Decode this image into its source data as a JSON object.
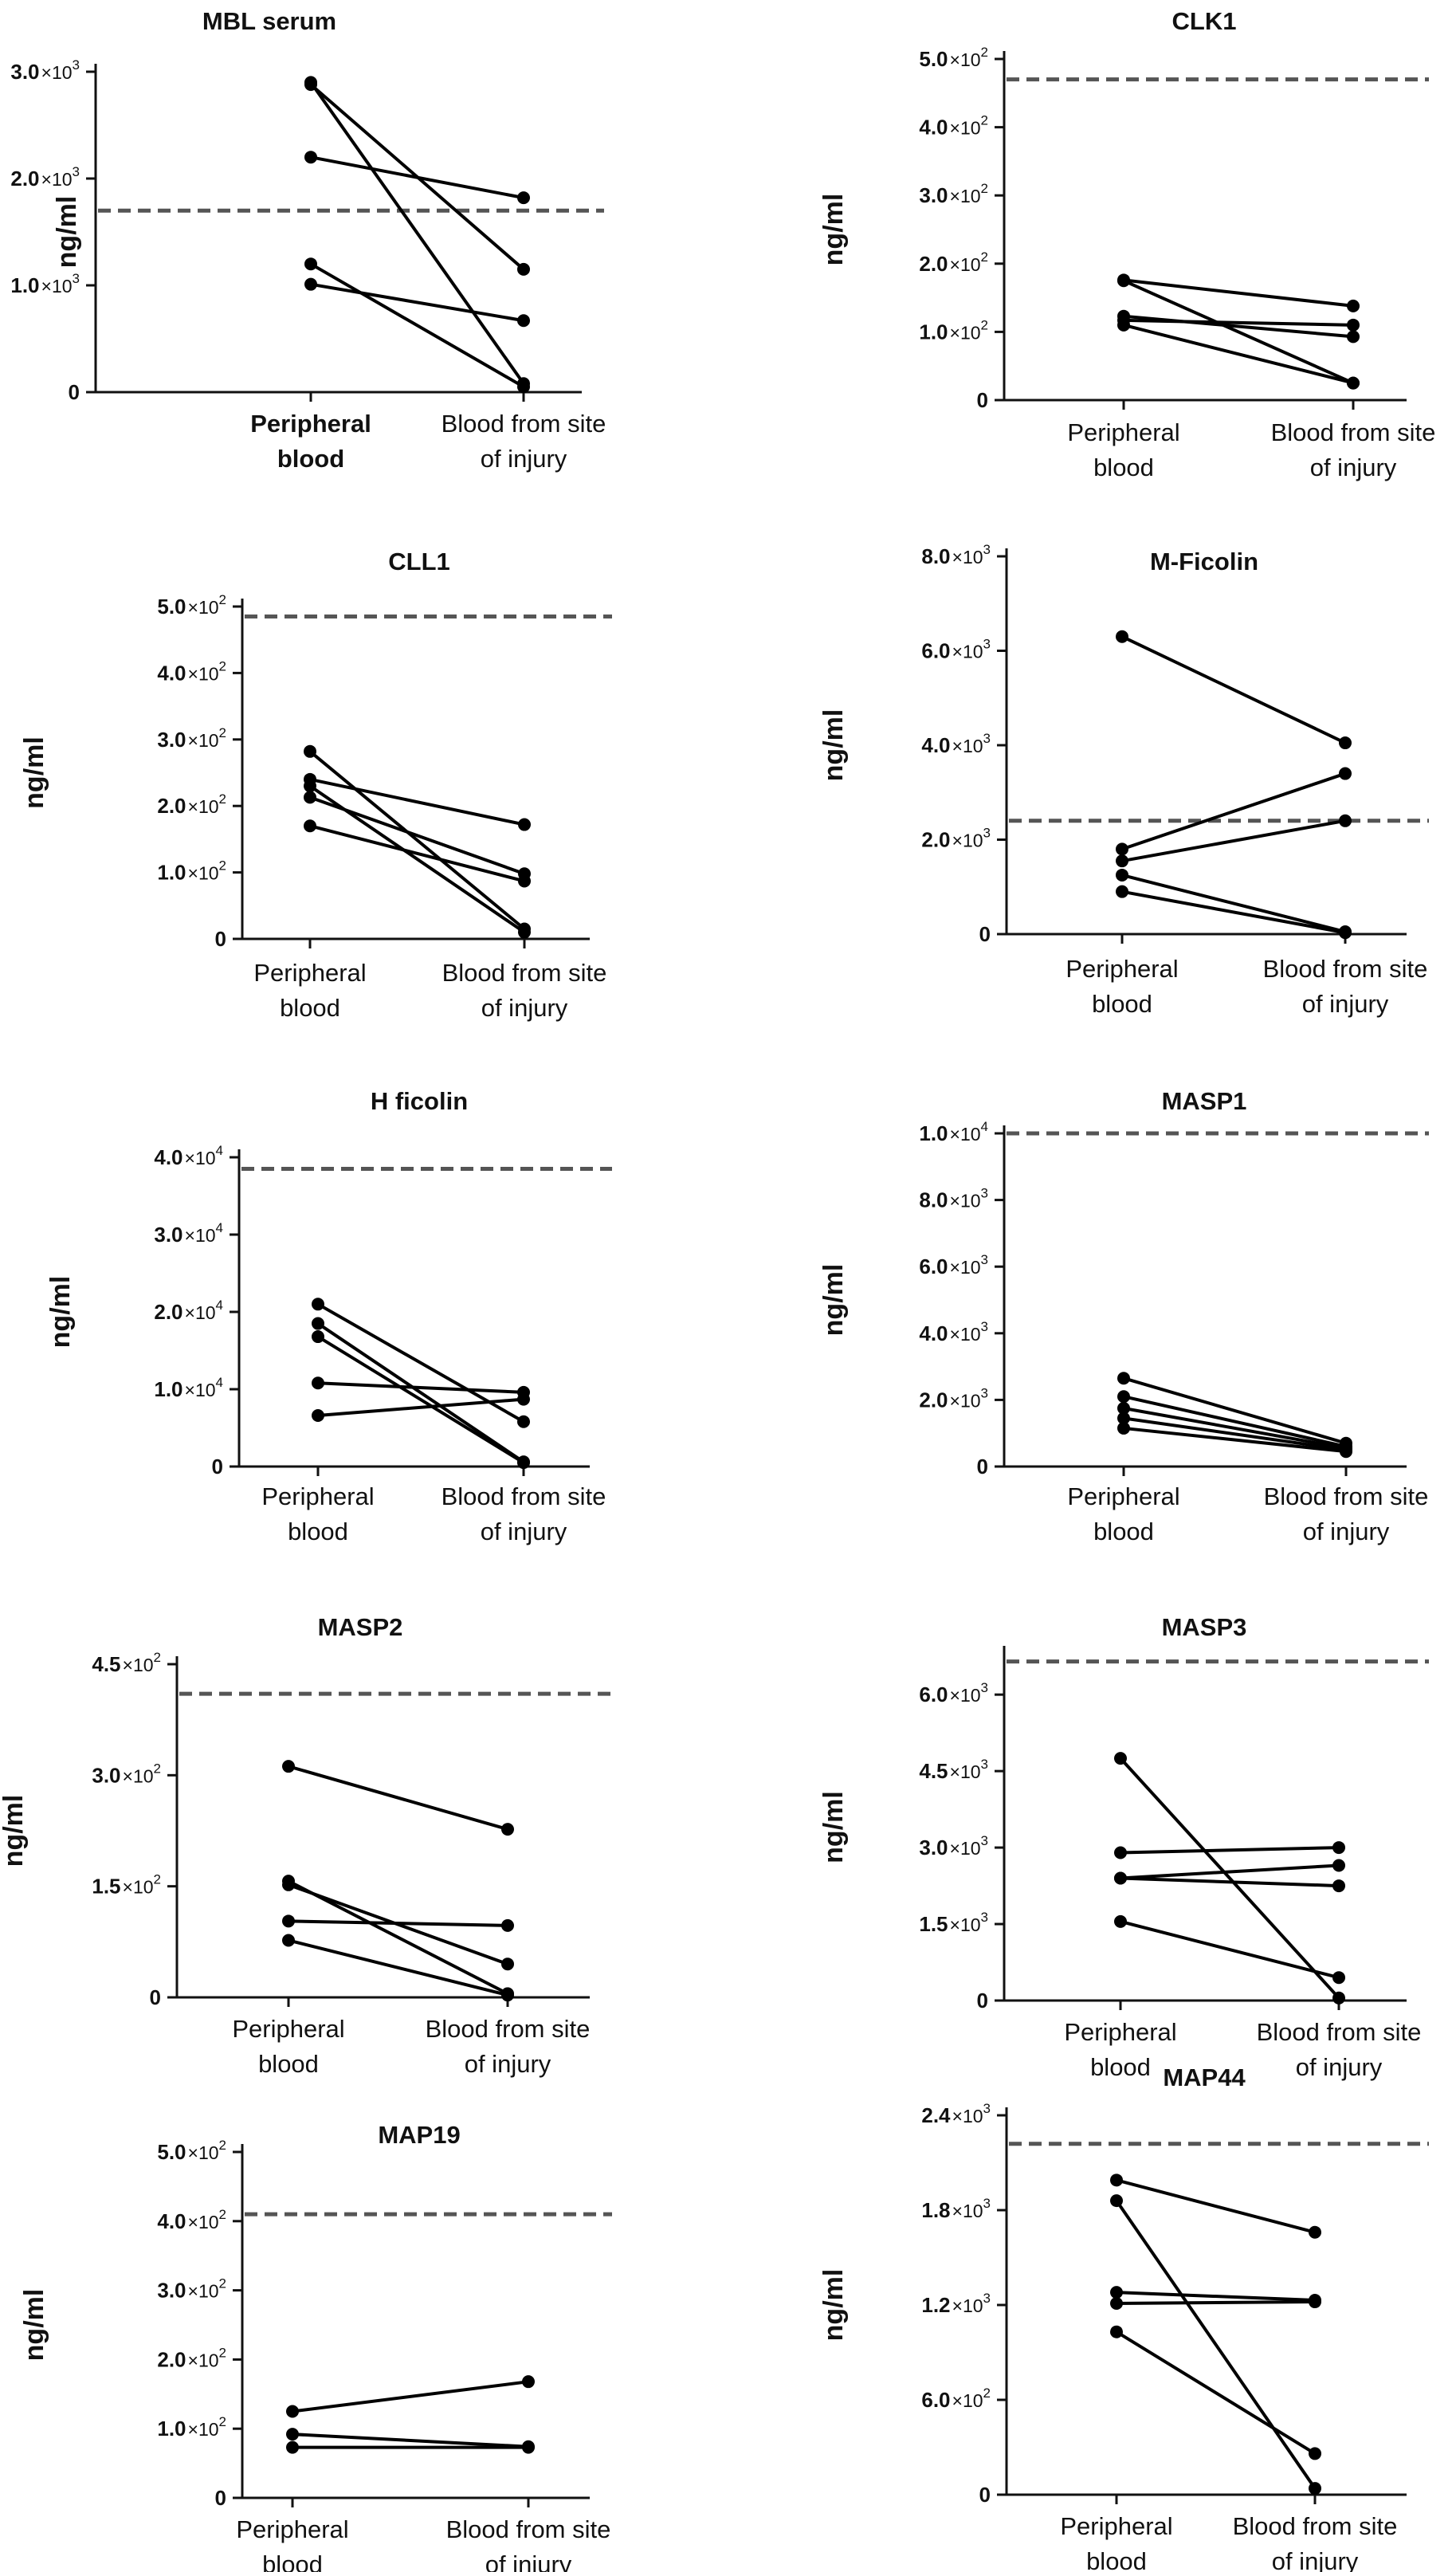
{
  "figure": {
    "panels": [
      {
        "title": "MBL serum",
        "ylabel": "ng/ml",
        "xcat": [
          "Peripheral blood",
          "Blood from site of injury"
        ],
        "xcat_lines": [
          [
            "Peripheral",
            "blood"
          ],
          [
            "Blood from site",
            "of injury"
          ]
        ],
        "xcat_bold": [
          true,
          false
        ],
        "threshold": 1700
      },
      {
        "title": "CLK1",
        "ylabel": "ng/ml",
        "xcat": [
          "Peripheral blood",
          "Blood from site of injury"
        ],
        "xcat_lines": [
          [
            "Peripheral",
            "blood"
          ],
          [
            "Blood from site",
            "of injury"
          ]
        ],
        "xcat_bold": [
          false,
          false
        ],
        "threshold": 470
      },
      {
        "title": "CLL1",
        "ylabel": "ng/ml",
        "xcat": [
          "Peripheral blood",
          "Blood from site of injury"
        ],
        "xcat_lines": [
          [
            "Peripheral",
            "blood"
          ],
          [
            "Blood from site",
            "of injury"
          ]
        ],
        "xcat_bold": [
          false,
          false
        ],
        "threshold": 485
      },
      {
        "title": "M-Ficolin",
        "ylabel": "ng/ml",
        "xcat": [
          "Peripheral blood",
          "Blood from site of injury"
        ],
        "xcat_lines": [
          [
            "Peripheral",
            "blood"
          ],
          [
            "Blood from site",
            "of injury"
          ]
        ],
        "xcat_bold": [
          false,
          false
        ],
        "threshold": 2400
      },
      {
        "title": "H ficolin",
        "ylabel": "ng/ml",
        "xcat": [
          "Peripheral blood",
          "Blood from site of injury"
        ],
        "xcat_lines": [
          [
            "Peripheral",
            "blood"
          ],
          [
            "Blood from site",
            "of injury"
          ]
        ],
        "xcat_bold": [
          false,
          false
        ],
        "threshold": 38500
      },
      {
        "title": "MASP1",
        "ylabel": "ng/ml",
        "xcat": [
          "Peripheral blood",
          "Blood from site of injury"
        ],
        "xcat_lines": [
          [
            "Peripheral",
            "blood"
          ],
          [
            "Blood from site",
            "of injury"
          ]
        ],
        "xcat_bold": [
          false,
          false
        ],
        "threshold": 10000
      },
      {
        "title": "MASP2",
        "ylabel": "ng/ml",
        "xcat": [
          "Peripheral blood",
          "Blood from site of injury"
        ],
        "xcat_lines": [
          [
            "Peripheral",
            "blood"
          ],
          [
            "Blood from site",
            "of injury"
          ]
        ],
        "xcat_bold": [
          false,
          false
        ],
        "threshold": 410
      },
      {
        "title": "MASP3",
        "ylabel": "ng/ml",
        "xcat": [
          "Peripheral blood",
          "Blood from site of injury"
        ],
        "xcat_lines": [
          [
            "Peripheral",
            "blood"
          ],
          [
            "Blood from site",
            "of injury"
          ]
        ],
        "xcat_bold": [
          false,
          false
        ],
        "threshold": 6650
      },
      {
        "title": "MAP19",
        "ylabel": "ng/ml",
        "xcat": [
          "Peripheral blood",
          "Blood from site of injury"
        ],
        "xcat_lines": [
          [
            "Peripheral",
            "blood"
          ],
          [
            "Blood from site",
            "of injury"
          ]
        ],
        "xcat_bold": [
          false,
          false
        ],
        "threshold": 410
      },
      {
        "title": "MAP44",
        "ylabel": "ng/ml",
        "xcat": [
          "Peripheral blood",
          "Blood from site of injury"
        ],
        "xcat_lines": [
          [
            "Peripheral",
            "blood"
          ],
          [
            "Blood from site",
            "of injury"
          ]
        ],
        "xcat_bold": [
          false,
          false
        ],
        "threshold": 2220
      }
    ]
  },
  "chart_data": [
    {
      "type": "line",
      "title": "MBL serum",
      "ylabel": "ng/ml",
      "categories": [
        "Peripheral blood",
        "Blood from site of injury"
      ],
      "ylim": [
        0,
        3000
      ],
      "yticks": [
        {
          "value": 0,
          "mantissa": "0",
          "exp": ""
        },
        {
          "value": 1000,
          "mantissa": "1.0",
          "exp": "3"
        },
        {
          "value": 2000,
          "mantissa": "2.0",
          "exp": "3"
        },
        {
          "value": 3000,
          "mantissa": "3.0",
          "exp": "3"
        }
      ],
      "threshold": 1700,
      "series": [
        {
          "values": [
            2900,
            80
          ]
        },
        {
          "values": [
            2880,
            1150
          ]
        },
        {
          "values": [
            2200,
            1820
          ]
        },
        {
          "values": [
            1200,
            50
          ]
        },
        {
          "values": [
            1010,
            670
          ]
        }
      ]
    },
    {
      "type": "line",
      "title": "CLK1",
      "ylabel": "ng/ml",
      "categories": [
        "Peripheral blood",
        "Blood from site of injury"
      ],
      "ylim": [
        0,
        500
      ],
      "yticks": [
        {
          "value": 0,
          "mantissa": "0",
          "exp": ""
        },
        {
          "value": 100,
          "mantissa": "1.0",
          "exp": "2"
        },
        {
          "value": 200,
          "mantissa": "2.0",
          "exp": "2"
        },
        {
          "value": 300,
          "mantissa": "3.0",
          "exp": "2"
        },
        {
          "value": 400,
          "mantissa": "4.0",
          "exp": "2"
        },
        {
          "value": 500,
          "mantissa": "5.0",
          "exp": "2"
        }
      ],
      "threshold": 470,
      "series": [
        {
          "values": [
            176,
            138
          ]
        },
        {
          "values": [
            175,
            25
          ]
        },
        {
          "values": [
            123,
            93
          ]
        },
        {
          "values": [
            117,
            110
          ]
        },
        {
          "values": [
            110,
            25
          ]
        }
      ]
    },
    {
      "type": "line",
      "title": "CLL1",
      "ylabel": "ng/ml",
      "categories": [
        "Peripheral blood",
        "Blood from site of injury"
      ],
      "ylim": [
        0,
        500
      ],
      "yticks": [
        {
          "value": 0,
          "mantissa": "0",
          "exp": ""
        },
        {
          "value": 100,
          "mantissa": "1.0",
          "exp": "2"
        },
        {
          "value": 200,
          "mantissa": "2.0",
          "exp": "2"
        },
        {
          "value": 300,
          "mantissa": "3.0",
          "exp": "2"
        },
        {
          "value": 400,
          "mantissa": "4.0",
          "exp": "2"
        },
        {
          "value": 500,
          "mantissa": "5.0",
          "exp": "2"
        }
      ],
      "threshold": 485,
      "series": [
        {
          "values": [
            282,
            15
          ]
        },
        {
          "values": [
            240,
            172
          ]
        },
        {
          "values": [
            230,
            10
          ]
        },
        {
          "values": [
            213,
            98
          ]
        },
        {
          "values": [
            170,
            87
          ]
        }
      ]
    },
    {
      "type": "line",
      "title": "M-Ficolin",
      "ylabel": "ng/ml",
      "categories": [
        "Peripheral blood",
        "Blood from site of injury"
      ],
      "ylim": [
        0,
        8000
      ],
      "yticks": [
        {
          "value": 0,
          "mantissa": "0",
          "exp": ""
        },
        {
          "value": 2000,
          "mantissa": "2.0",
          "exp": "3"
        },
        {
          "value": 4000,
          "mantissa": "4.0",
          "exp": "3"
        },
        {
          "value": 6000,
          "mantissa": "6.0",
          "exp": "3"
        },
        {
          "value": 8000,
          "mantissa": "8.0",
          "exp": "3"
        }
      ],
      "threshold": 2400,
      "series": [
        {
          "values": [
            6300,
            4050
          ]
        },
        {
          "values": [
            1800,
            3400
          ]
        },
        {
          "values": [
            1550,
            2400
          ]
        },
        {
          "values": [
            1250,
            50
          ]
        },
        {
          "values": [
            900,
            30
          ]
        }
      ]
    },
    {
      "type": "line",
      "title": "H ficolin",
      "ylabel": "ng/ml",
      "categories": [
        "Peripheral blood",
        "Blood from site of injury"
      ],
      "ylim": [
        0,
        40000
      ],
      "yticks": [
        {
          "value": 0,
          "mantissa": "0",
          "exp": ""
        },
        {
          "value": 10000,
          "mantissa": "1.0",
          "exp": "4"
        },
        {
          "value": 20000,
          "mantissa": "2.0",
          "exp": "4"
        },
        {
          "value": 30000,
          "mantissa": "3.0",
          "exp": "4"
        },
        {
          "value": 40000,
          "mantissa": "4.0",
          "exp": "4"
        }
      ],
      "threshold": 38500,
      "series": [
        {
          "values": [
            21000,
            5800
          ]
        },
        {
          "values": [
            18500,
            600
          ]
        },
        {
          "values": [
            16800,
            500
          ]
        },
        {
          "values": [
            10800,
            9600
          ]
        },
        {
          "values": [
            6600,
            8700
          ]
        }
      ]
    },
    {
      "type": "line",
      "title": "MASP1",
      "ylabel": "ng/ml",
      "categories": [
        "Peripheral blood",
        "Blood from site of injury"
      ],
      "ylim": [
        0,
        10000
      ],
      "yticks": [
        {
          "value": 0,
          "mantissa": "0",
          "exp": ""
        },
        {
          "value": 2000,
          "mantissa": "2.0",
          "exp": "3"
        },
        {
          "value": 4000,
          "mantissa": "4.0",
          "exp": "3"
        },
        {
          "value": 6000,
          "mantissa": "6.0",
          "exp": "3"
        },
        {
          "value": 8000,
          "mantissa": "8.0",
          "exp": "3"
        },
        {
          "value": 10000,
          "mantissa": "1.0",
          "exp": "4"
        }
      ],
      "threshold": 10000,
      "series": [
        {
          "values": [
            2650,
            700
          ]
        },
        {
          "values": [
            2100,
            600
          ]
        },
        {
          "values": [
            1750,
            550
          ]
        },
        {
          "values": [
            1450,
            500
          ]
        },
        {
          "values": [
            1150,
            450
          ]
        }
      ]
    },
    {
      "type": "line",
      "title": "MASP2",
      "ylabel": "ng/ml",
      "categories": [
        "Peripheral blood",
        "Blood from site of injury"
      ],
      "ylim": [
        0,
        450
      ],
      "yticks": [
        {
          "value": 0,
          "mantissa": "0",
          "exp": ""
        },
        {
          "value": 150,
          "mantissa": "1.5",
          "exp": "2"
        },
        {
          "value": 300,
          "mantissa": "3.0",
          "exp": "2"
        },
        {
          "value": 450,
          "mantissa": "4.5",
          "exp": "2"
        }
      ],
      "threshold": 410,
      "series": [
        {
          "values": [
            312,
            227
          ]
        },
        {
          "values": [
            157,
            5
          ]
        },
        {
          "values": [
            152,
            45
          ]
        },
        {
          "values": [
            103,
            97
          ]
        },
        {
          "values": [
            77,
            3
          ]
        }
      ]
    },
    {
      "type": "line",
      "title": "MASP3",
      "ylabel": "ng/ml",
      "categories": [
        "Peripheral blood",
        "Blood from site of injury"
      ],
      "ylim": [
        0,
        6800
      ],
      "yticks": [
        {
          "value": 0,
          "mantissa": "0",
          "exp": ""
        },
        {
          "value": 1500,
          "mantissa": "1.5",
          "exp": "3"
        },
        {
          "value": 3000,
          "mantissa": "3.0",
          "exp": "3"
        },
        {
          "value": 4500,
          "mantissa": "4.5",
          "exp": "3"
        },
        {
          "value": 6000,
          "mantissa": "6.0",
          "exp": "3"
        }
      ],
      "threshold": 6650,
      "series": [
        {
          "values": [
            4750,
            50
          ]
        },
        {
          "values": [
            2900,
            3000
          ]
        },
        {
          "values": [
            2400,
            2650
          ]
        },
        {
          "values": [
            2400,
            2250
          ]
        },
        {
          "values": [
            1550,
            450
          ]
        }
      ]
    },
    {
      "type": "line",
      "title": "MAP19",
      "ylabel": "ng/ml",
      "categories": [
        "Peripheral blood",
        "Blood from site of injury"
      ],
      "ylim": [
        0,
        500
      ],
      "yticks": [
        {
          "value": 0,
          "mantissa": "0",
          "exp": ""
        },
        {
          "value": 100,
          "mantissa": "1.0",
          "exp": "2"
        },
        {
          "value": 200,
          "mantissa": "2.0",
          "exp": "2"
        },
        {
          "value": 300,
          "mantissa": "3.0",
          "exp": "2"
        },
        {
          "value": 400,
          "mantissa": "4.0",
          "exp": "2"
        },
        {
          "value": 500,
          "mantissa": "5.0",
          "exp": "2"
        }
      ],
      "threshold": 410,
      "series": [
        {
          "values": [
            125,
            168
          ]
        },
        {
          "values": [
            92,
            74
          ]
        },
        {
          "values": [
            73,
            73
          ]
        }
      ]
    },
    {
      "type": "line",
      "title": "MAP44",
      "ylabel": "ng/ml",
      "categories": [
        "Peripheral blood",
        "Blood from site of injury"
      ],
      "ylim": [
        0,
        2400
      ],
      "yticks": [
        {
          "value": 0,
          "mantissa": "0",
          "exp": ""
        },
        {
          "value": 600,
          "mantissa": "6.0",
          "exp": "2"
        },
        {
          "value": 1200,
          "mantissa": "1.2",
          "exp": "3"
        },
        {
          "value": 1800,
          "mantissa": "1.8",
          "exp": "3"
        },
        {
          "value": 2400,
          "mantissa": "2.4",
          "exp": "3"
        }
      ],
      "threshold": 2220,
      "series": [
        {
          "values": [
            1990,
            1660
          ]
        },
        {
          "values": [
            1860,
            40
          ]
        },
        {
          "values": [
            1280,
            1230
          ]
        },
        {
          "values": [
            1210,
            1220
          ]
        },
        {
          "values": [
            1030,
            260
          ]
        }
      ]
    }
  ]
}
